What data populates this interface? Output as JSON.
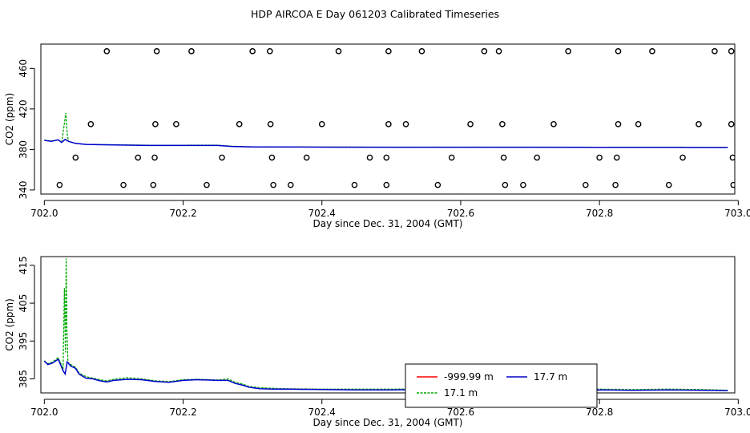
{
  "title": "HDP AIRCOA E  Day 061203  Calibrated Timeseries",
  "chart_data": [
    {
      "type": "line",
      "xlabel": "Day since Dec. 31, 2004 (GMT)",
      "ylabel": "CO2 (ppm)",
      "xlim": [
        701.995,
        702.995
      ],
      "ylim": [
        336,
        484
      ],
      "xticks": [
        702.0,
        702.2,
        702.4,
        702.6,
        702.8,
        703.0
      ],
      "xtick_labels": [
        "702.0",
        "702.2",
        "702.4",
        "702.6",
        "702.8",
        "703.0"
      ],
      "yticks": [
        340,
        380,
        420,
        460
      ],
      "ytick_labels": [
        "340",
        "380",
        "420",
        "460"
      ],
      "series": [
        {
          "name": "-999.99 m",
          "color": "#ff0000",
          "x": [],
          "y": []
        },
        {
          "name": "17.7 m",
          "color": "#0000cc",
          "x": [
            702.0,
            702.01,
            702.02,
            702.025,
            702.03,
            702.035,
            702.045,
            702.06,
            702.1,
            702.15,
            702.2,
            702.25,
            702.27,
            702.3,
            702.4,
            702.5,
            702.6,
            702.7,
            702.8,
            702.9,
            702.985
          ],
          "y": [
            389,
            388,
            389.5,
            387,
            390,
            388,
            386,
            385,
            384.5,
            384,
            384,
            384,
            383,
            382.5,
            382.3,
            382.2,
            382.2,
            382.2,
            382.1,
            382.1,
            382
          ]
        },
        {
          "name": "17.1 m",
          "color": "#00aa00",
          "x": [
            702.0,
            702.01,
            702.02,
            702.025,
            702.031,
            702.033,
            702.035,
            702.045,
            702.06,
            702.1,
            702.15,
            702.2,
            702.25,
            702.27,
            702.3,
            702.4,
            702.5,
            702.6,
            702.7,
            702.8,
            702.9,
            702.985
          ],
          "y": [
            389,
            388.5,
            389.5,
            387,
            416,
            395,
            388,
            386,
            385,
            384.7,
            384.2,
            384.2,
            384.3,
            383.2,
            382.6,
            382.4,
            382.3,
            382.3,
            382.3,
            382.2,
            382.3,
            382.1
          ]
        }
      ],
      "markers": [
        {
          "x": [
            702.09,
            702.162,
            702.212,
            702.3,
            702.325,
            702.424,
            702.496,
            702.544,
            702.634,
            702.655,
            702.755,
            702.827,
            702.876,
            702.966,
            702.99
          ],
          "y": 477
        },
        {
          "x": [
            702.067,
            702.16,
            702.19,
            702.281,
            702.326,
            702.4,
            702.496,
            702.521,
            702.614,
            702.66,
            702.734,
            702.827,
            702.856,
            702.943,
            702.99
          ],
          "y": 405
        },
        {
          "x": [
            702.045,
            702.135,
            702.159,
            702.256,
            702.328,
            702.378,
            702.469,
            702.493,
            702.587,
            702.662,
            702.71,
            702.8,
            702.825,
            702.92,
            702.992
          ],
          "y": 372
        },
        {
          "x": [
            702.022,
            702.114,
            702.157,
            702.234,
            702.33,
            702.355,
            702.447,
            702.493,
            702.567,
            702.664,
            702.69,
            702.78,
            702.823,
            702.9,
            702.993
          ],
          "y": 345
        }
      ]
    },
    {
      "type": "line",
      "xlabel": "Day since Dec. 31, 2004 (GMT)",
      "ylabel": "CO2 (ppm)",
      "xlim": [
        701.995,
        702.995
      ],
      "ylim": [
        381.3,
        417.3
      ],
      "xticks": [
        702.0,
        702.2,
        702.4,
        702.6,
        702.8,
        703.0
      ],
      "xtick_labels": [
        "702.0",
        "702.2",
        "702.4",
        "702.6",
        "702.8",
        "703.0"
      ],
      "yticks": [
        385,
        395,
        405,
        415
      ],
      "ytick_labels": [
        "385",
        "395",
        "405",
        "415"
      ],
      "series": [
        {
          "name": "-999.99 m",
          "color": "#ff0000",
          "x": [],
          "y": []
        },
        {
          "name": "17.7 m",
          "color": "#0000cc",
          "x": [
            702.0,
            702.005,
            702.012,
            702.02,
            702.024,
            702.027,
            702.03,
            702.033,
            702.038,
            702.045,
            702.05,
            702.06,
            702.07,
            702.08,
            702.09,
            702.1,
            702.12,
            702.14,
            702.16,
            702.18,
            702.2,
            702.22,
            702.25,
            702.265,
            702.275,
            702.285,
            702.295,
            702.31,
            702.33,
            702.35,
            702.4,
            702.45,
            702.5,
            702.55,
            702.6,
            702.65,
            702.7,
            702.75,
            702.8,
            702.85,
            702.9,
            702.95,
            702.985
          ],
          "y": [
            389.7,
            388.8,
            389.2,
            390.2,
            388.5,
            387.2,
            386.3,
            389.5,
            388.4,
            387.8,
            386.3,
            385.2,
            385.0,
            384.5,
            384.2,
            384.6,
            384.9,
            384.8,
            384.3,
            384.1,
            384.6,
            384.8,
            384.6,
            384.6,
            383.8,
            383.4,
            382.8,
            382.4,
            382.3,
            382.3,
            382.2,
            382.1,
            382.1,
            382.2,
            382.0,
            382.1,
            382.0,
            382.0,
            382.1,
            382.0,
            382.1,
            382.0,
            381.9
          ]
        },
        {
          "name": "17.1 m",
          "color": "#00aa00",
          "x": [
            702.0,
            702.005,
            702.012,
            702.02,
            702.024,
            702.027,
            702.029,
            702.0305,
            702.0315,
            702.0325,
            702.034,
            702.038,
            702.045,
            702.05,
            702.06,
            702.07,
            702.08,
            702.09,
            702.1,
            702.12,
            702.14,
            702.16,
            702.18,
            702.2,
            702.22,
            702.25,
            702.265,
            702.275,
            702.285,
            702.295,
            702.31,
            702.33,
            702.35,
            702.4,
            702.45,
            702.5,
            702.55,
            702.6,
            702.65,
            702.7,
            702.75,
            702.8,
            702.85,
            702.9,
            702.95,
            702.985
          ],
          "y": [
            389.8,
            389.0,
            389.5,
            390.6,
            389.0,
            387.6,
            409.0,
            392.0,
            416.8,
            398.0,
            389.3,
            388.8,
            388.1,
            386.6,
            385.6,
            385.2,
            384.8,
            384.5,
            384.9,
            385.3,
            385.0,
            384.5,
            384.3,
            384.8,
            384.9,
            384.7,
            385.0,
            384.1,
            383.7,
            383.0,
            382.7,
            382.5,
            382.4,
            382.3,
            382.3,
            382.3,
            382.4,
            382.2,
            382.3,
            382.2,
            382.2,
            382.3,
            382.2,
            382.3,
            382.2,
            382.0
          ]
        }
      ],
      "legend": {
        "entries": [
          {
            "label": "-999.99 m",
            "color": "#ff0000"
          },
          {
            "label": "17.7 m",
            "color": "#0000cc"
          },
          {
            "label": "17.1 m",
            "color": "#00aa00"
          }
        ]
      }
    }
  ]
}
